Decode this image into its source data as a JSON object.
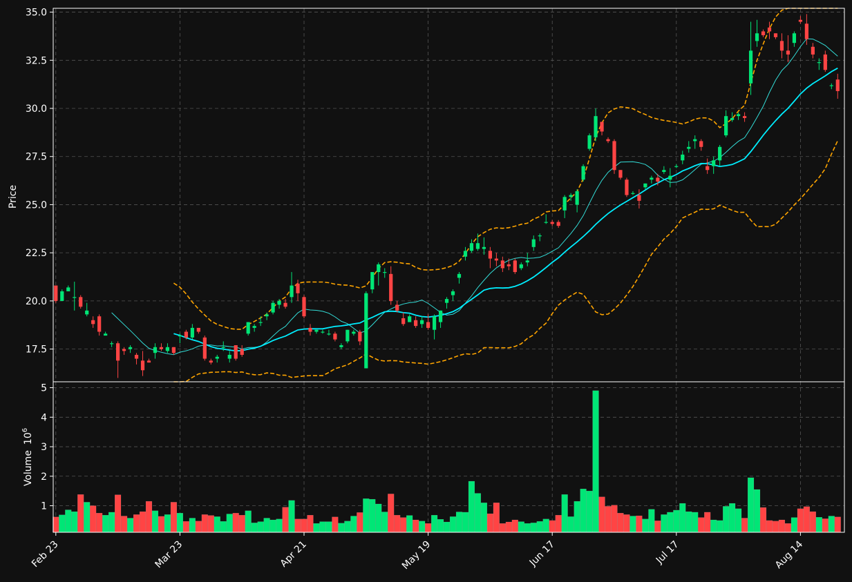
{
  "chart_data": {
    "type": "candlestick",
    "theme": {
      "background": "#111111",
      "up_color": "#00e676",
      "down_color": "#ff4444",
      "ma_fast_color": "#33ddd8",
      "ma_slow_color": "#00eeff",
      "band_color": "#ffa500",
      "grid_color": "#555555",
      "axis_color": "#ffffff"
    },
    "price_panel": {
      "ylabel": "Price",
      "ylim": [
        15.8,
        35.2
      ],
      "yticks": [
        "17.5",
        "20.0",
        "22.5",
        "25.0",
        "27.5",
        "30.0",
        "32.5",
        "35.0"
      ],
      "grid": true
    },
    "volume_panel": {
      "ylabel": "Volume",
      "ylabel_exponent": "10",
      "ylabel_power": "6",
      "ylim": [
        0.1,
        5.2
      ],
      "yticks": [
        "1",
        "2",
        "3",
        "4",
        "5"
      ],
      "grid": true
    },
    "xticks": [
      {
        "label": "Feb 23",
        "index": 0
      },
      {
        "label": "Mar 23",
        "index": 20
      },
      {
        "label": "Apr 21",
        "index": 40
      },
      {
        "label": "May 19",
        "index": 60
      },
      {
        "label": "Jun 17",
        "index": 80
      },
      {
        "label": "Jul 17",
        "index": 100
      },
      {
        "label": "Aug 14",
        "index": 120
      }
    ],
    "candles": [
      [
        20.8,
        20.8,
        19.9,
        20.0
      ],
      [
        20.0,
        20.6,
        20.0,
        20.5
      ],
      [
        20.5,
        20.8,
        20.5,
        20.7
      ],
      [
        20.2,
        21.0,
        19.5,
        20.2
      ],
      [
        20.2,
        20.3,
        19.6,
        19.7
      ],
      [
        19.3,
        19.9,
        19.2,
        19.5
      ],
      [
        19.0,
        19.2,
        18.6,
        18.8
      ],
      [
        19.2,
        19.3,
        18.2,
        18.4
      ],
      [
        18.2,
        18.4,
        18.2,
        18.3
      ],
      [
        17.8,
        17.9,
        17.6,
        17.8
      ],
      [
        17.8,
        17.9,
        16.0,
        16.9
      ],
      [
        17.5,
        17.6,
        17.2,
        17.4
      ],
      [
        17.5,
        17.7,
        17.3,
        17.6
      ],
      [
        17.2,
        17.3,
        16.7,
        17.0
      ],
      [
        16.9,
        17.4,
        16.1,
        16.4
      ],
      [
        16.9,
        17.0,
        16.8,
        16.8
      ],
      [
        17.3,
        17.8,
        17.0,
        17.6
      ],
      [
        17.6,
        17.8,
        17.4,
        17.5
      ],
      [
        17.4,
        17.8,
        17.3,
        17.6
      ],
      [
        17.6,
        17.6,
        17.2,
        17.3
      ],
      [
        18.2,
        18.3,
        17.8,
        18.2
      ],
      [
        18.4,
        18.5,
        18.0,
        18.1
      ],
      [
        18.1,
        18.8,
        18.0,
        18.6
      ],
      [
        18.6,
        18.6,
        18.3,
        18.4
      ],
      [
        18.1,
        18.2,
        16.9,
        17.0
      ],
      [
        16.9,
        17.0,
        16.7,
        16.8
      ],
      [
        17.0,
        17.2,
        16.8,
        17.1
      ],
      [
        17.6,
        17.9,
        17.4,
        17.6
      ],
      [
        17.0,
        17.4,
        16.8,
        17.2
      ],
      [
        17.7,
        17.7,
        16.9,
        17.0
      ],
      [
        17.5,
        17.7,
        17.1,
        17.2
      ],
      [
        18.3,
        18.9,
        18.2,
        18.9
      ],
      [
        18.6,
        18.8,
        18.4,
        18.7
      ],
      [
        18.9,
        19.2,
        18.7,
        18.9
      ],
      [
        19.2,
        19.4,
        19.0,
        19.3
      ],
      [
        19.4,
        20.0,
        19.3,
        19.9
      ],
      [
        19.8,
        20.1,
        19.6,
        20.0
      ],
      [
        19.9,
        20.1,
        19.6,
        19.7
      ],
      [
        20.2,
        21.5,
        19.9,
        20.8
      ],
      [
        20.9,
        21.1,
        20.0,
        20.4
      ],
      [
        20.2,
        20.3,
        19.1,
        19.2
      ],
      [
        18.6,
        18.8,
        18.2,
        18.4
      ],
      [
        18.4,
        18.5,
        18.3,
        18.5
      ],
      [
        18.4,
        18.5,
        18.3,
        18.4
      ],
      [
        18.3,
        18.5,
        18.2,
        18.3
      ],
      [
        18.3,
        18.4,
        17.9,
        18.0
      ],
      [
        17.6,
        17.8,
        17.5,
        17.7
      ],
      [
        17.9,
        18.5,
        17.8,
        18.5
      ],
      [
        18.3,
        18.5,
        18.2,
        18.4
      ],
      [
        18.4,
        18.5,
        17.7,
        17.9
      ],
      [
        16.5,
        20.5,
        16.5,
        20.4
      ],
      [
        20.6,
        21.5,
        20.4,
        21.5
      ],
      [
        21.5,
        22.0,
        20.8,
        21.9
      ],
      [
        21.5,
        21.7,
        21.2,
        21.5
      ],
      [
        21.4,
        21.8,
        19.8,
        20.0
      ],
      [
        19.8,
        20.0,
        19.4,
        19.5
      ],
      [
        19.1,
        19.4,
        18.7,
        18.8
      ],
      [
        18.9,
        19.3,
        18.9,
        19.2
      ],
      [
        19.0,
        19.2,
        18.6,
        18.7
      ],
      [
        18.8,
        19.2,
        18.6,
        19.0
      ],
      [
        18.9,
        19.3,
        18.5,
        18.6
      ],
      [
        18.5,
        19.3,
        18.0,
        19.2
      ],
      [
        18.9,
        19.5,
        18.6,
        19.5
      ],
      [
        19.9,
        20.2,
        19.6,
        20.1
      ],
      [
        20.3,
        20.6,
        20.0,
        20.5
      ],
      [
        21.2,
        21.5,
        20.9,
        21.4
      ],
      [
        22.3,
        22.8,
        22.1,
        22.6
      ],
      [
        22.6,
        23.2,
        22.5,
        23.0
      ],
      [
        22.7,
        23.5,
        22.6,
        23.0
      ],
      [
        22.7,
        23.3,
        22.4,
        22.8
      ],
      [
        22.6,
        22.8,
        21.7,
        22.2
      ],
      [
        22.2,
        22.5,
        21.8,
        22.1
      ],
      [
        22.1,
        22.3,
        21.5,
        21.7
      ],
      [
        21.9,
        22.2,
        21.6,
        21.8
      ],
      [
        22.1,
        22.2,
        21.4,
        21.5
      ],
      [
        21.7,
        22.0,
        21.6,
        21.9
      ],
      [
        22.0,
        22.5,
        21.8,
        22.1
      ],
      [
        22.8,
        23.4,
        22.6,
        23.2
      ],
      [
        23.4,
        23.5,
        23.1,
        23.4
      ],
      [
        24.1,
        24.5,
        24.0,
        24.1
      ],
      [
        24.1,
        24.2,
        23.9,
        24.0
      ],
      [
        24.1,
        24.2,
        23.8,
        23.9
      ],
      [
        24.7,
        25.5,
        24.3,
        25.4
      ],
      [
        25.4,
        25.6,
        25.2,
        25.5
      ],
      [
        25.0,
        25.8,
        24.6,
        25.7
      ],
      [
        26.3,
        27.1,
        26.2,
        27.0
      ],
      [
        27.9,
        28.7,
        27.8,
        28.6
      ],
      [
        28.5,
        30.0,
        28.3,
        29.6
      ],
      [
        29.3,
        29.3,
        28.6,
        28.8
      ],
      [
        28.4,
        28.5,
        28.2,
        28.3
      ],
      [
        28.3,
        28.4,
        26.6,
        26.8
      ],
      [
        26.8,
        26.8,
        26.3,
        26.4
      ],
      [
        26.3,
        26.4,
        25.4,
        25.5
      ],
      [
        25.6,
        25.7,
        25.5,
        25.6
      ],
      [
        25.5,
        25.8,
        24.8,
        25.2
      ],
      [
        25.9,
        26.1,
        25.8,
        26.1
      ],
      [
        26.3,
        26.5,
        26.1,
        26.4
      ],
      [
        26.4,
        26.6,
        26.0,
        26.2
      ],
      [
        26.7,
        27.0,
        26.6,
        26.8
      ],
      [
        26.3,
        26.9,
        25.9,
        26.5
      ],
      [
        27.0,
        27.1,
        26.9,
        27.0
      ],
      [
        27.3,
        27.8,
        27.1,
        27.6
      ],
      [
        27.9,
        28.3,
        27.7,
        28.0
      ],
      [
        28.3,
        28.6,
        27.9,
        28.4
      ],
      [
        28.3,
        28.4,
        27.8,
        28.0
      ],
      [
        27.0,
        27.4,
        26.6,
        26.8
      ],
      [
        27.0,
        27.5,
        26.6,
        27.3
      ],
      [
        27.3,
        28.1,
        27.0,
        28.0
      ],
      [
        28.6,
        29.9,
        28.5,
        29.6
      ],
      [
        29.4,
        29.8,
        29.3,
        29.5
      ],
      [
        29.6,
        29.8,
        29.4,
        29.7
      ],
      [
        29.6,
        29.8,
        29.3,
        29.5
      ],
      [
        31.3,
        34.5,
        30.7,
        33.0
      ],
      [
        33.5,
        34.6,
        33.2,
        33.9
      ],
      [
        34.0,
        34.1,
        33.7,
        33.8
      ],
      [
        34.2,
        34.5,
        33.6,
        34.0
      ],
      [
        33.9,
        33.9,
        33.6,
        33.7
      ],
      [
        33.5,
        33.9,
        32.6,
        33.0
      ],
      [
        33.0,
        33.8,
        32.4,
        32.8
      ],
      [
        33.4,
        34.0,
        33.2,
        33.9
      ],
      [
        34.6,
        34.8,
        34.4,
        34.5
      ],
      [
        34.4,
        34.9,
        33.3,
        33.6
      ],
      [
        33.2,
        33.4,
        32.6,
        32.8
      ],
      [
        32.4,
        32.6,
        32.0,
        32.4
      ],
      [
        32.8,
        33.0,
        31.9,
        32.0
      ],
      [
        31.2,
        31.3,
        31.0,
        31.2
      ],
      [
        31.5,
        31.8,
        30.5,
        30.9
      ]
    ],
    "volume_millions": [
      0.62,
      0.69,
      0.86,
      0.8,
      1.38,
      1.12,
      1.0,
      0.75,
      0.68,
      0.78,
      1.37,
      0.65,
      0.58,
      0.7,
      0.8,
      1.15,
      0.83,
      0.64,
      0.7,
      1.12,
      0.75,
      0.47,
      0.58,
      0.48,
      0.7,
      0.67,
      0.63,
      0.47,
      0.72,
      0.75,
      0.68,
      0.83,
      0.42,
      0.46,
      0.58,
      0.52,
      0.55,
      0.95,
      1.18,
      0.55,
      0.55,
      0.68,
      0.4,
      0.46,
      0.46,
      0.62,
      0.41,
      0.48,
      0.65,
      0.77,
      1.24,
      1.22,
      1.06,
      0.79,
      1.4,
      0.68,
      0.6,
      0.67,
      0.52,
      0.48,
      0.4,
      0.68,
      0.54,
      0.45,
      0.63,
      0.79,
      0.78,
      1.83,
      1.42,
      1.1,
      0.73,
      1.1,
      0.4,
      0.45,
      0.52,
      0.46,
      0.4,
      0.42,
      0.47,
      0.55,
      0.5,
      0.68,
      1.38,
      0.63,
      1.15,
      1.57,
      1.5,
      4.9,
      1.3,
      0.98,
      1.02,
      0.75,
      0.7,
      0.65,
      0.66,
      0.55,
      0.88,
      0.49,
      0.7,
      0.78,
      0.85,
      1.08,
      0.8,
      0.78,
      0.6,
      0.78,
      0.52,
      0.5,
      0.98,
      1.08,
      0.9,
      0.58,
      1.95,
      1.55,
      0.94,
      0.5,
      0.48,
      0.52,
      0.4,
      0.6,
      0.9,
      0.97,
      0.8,
      0.61,
      0.56,
      0.65,
      0.62
    ],
    "ma_fast": [
      null,
      null,
      null,
      null,
      null,
      null,
      null,
      null,
      null,
      null,
      null,
      null,
      null,
      null,
      null,
      null,
      null,
      null,
      null,
      null,
      null,
      null,
      null,
      null,
      null,
      null,
      null,
      null,
      null,
      null,
      null,
      null,
      null,
      null,
      null,
      null,
      null,
      null,
      null,
      null,
      null,
      null,
      null,
      null,
      null,
      null,
      null,
      null,
      null,
      null,
      null,
      null,
      null,
      null,
      null,
      null,
      null,
      null,
      null,
      null,
      null,
      null,
      null,
      null,
      null,
      null,
      null,
      null,
      null,
      null,
      null,
      null,
      null,
      null,
      null,
      null,
      null,
      null,
      null,
      null,
      null,
      null,
      null,
      null,
      null,
      null,
      null,
      null,
      null,
      null,
      null,
      null,
      null,
      null,
      null,
      null,
      null,
      null,
      null,
      null,
      null,
      null,
      null,
      null,
      null,
      null,
      null,
      null,
      null,
      null,
      null,
      null,
      null,
      null,
      null,
      null,
      null,
      null,
      null,
      null,
      null,
      null,
      null,
      null,
      null,
      null,
      null
    ],
    "ma_slow": [],
    "bands_upper": [],
    "bands_lower": []
  }
}
